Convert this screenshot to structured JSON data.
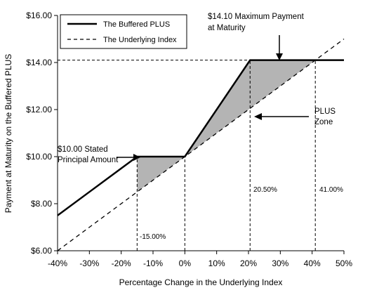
{
  "chart_data": {
    "type": "line",
    "xlabel": "Percentage Change in the Underlying Index",
    "ylabel": "Payment at Maturity on the Buffered PLUS",
    "xlim": [
      -40,
      50
    ],
    "ylim": [
      6,
      16
    ],
    "x_ticks": [
      -40,
      -30,
      -20,
      -10,
      0,
      10,
      20,
      30,
      40,
      50
    ],
    "x_tick_labels": [
      "-40%",
      "-30%",
      "-20%",
      "-10%",
      "0%",
      "10%",
      "20%",
      "30%",
      "40%",
      "50%"
    ],
    "y_ticks": [
      6,
      8,
      10,
      12,
      14,
      16
    ],
    "y_tick_labels": [
      "$6.00",
      "$8.00",
      "$10.00",
      "$12.00",
      "$14.00",
      "$16.00"
    ],
    "grid": false,
    "legend_position": "top-left",
    "series": [
      {
        "name": "The Buffered PLUS",
        "style": "solid",
        "color": "#000000",
        "x": [
          -40,
          -15,
          0,
          20.5,
          50
        ],
        "y": [
          7.5,
          10,
          10,
          14.1,
          14.1
        ]
      },
      {
        "name": "The Underlying Index",
        "style": "dashed",
        "color": "#000000",
        "x": [
          -40,
          50
        ],
        "y": [
          6,
          15
        ]
      }
    ],
    "shaded_regions": [
      {
        "x": [
          -15,
          0
        ],
        "upper": [
          10,
          10
        ],
        "lower": [
          8.5,
          10
        ],
        "color": "#b4b4b4"
      },
      {
        "x": [
          0,
          20.5,
          41
        ],
        "upper": [
          10,
          14.1,
          14.1
        ],
        "lower": [
          10,
          12.05,
          14.1
        ],
        "color": "#b4b4b4"
      }
    ],
    "reference_lines": {
      "vertical": [
        {
          "x": -15,
          "from": 6,
          "to": 10
        },
        {
          "x": 0,
          "from": 6,
          "to": 10
        },
        {
          "x": 20.5,
          "from": 6,
          "to": 14.1
        },
        {
          "x": 41,
          "from": 6,
          "to": 14.1
        }
      ],
      "horizontal": [
        {
          "y": 14.1,
          "from": -40,
          "to": 20.5
        }
      ]
    },
    "annotations": {
      "max_payment_1": "$14.10 Maximum  Payment",
      "max_payment_2": "at Maturity",
      "plus_zone_1": "PLUS",
      "plus_zone_2": "Zone",
      "stated_principal_1": "$10.00 Stated",
      "stated_principal_2": "Principal Amount",
      "label_neg15": "-15.00%",
      "label_20_5": "20.50%",
      "label_41": "41.00%"
    }
  }
}
